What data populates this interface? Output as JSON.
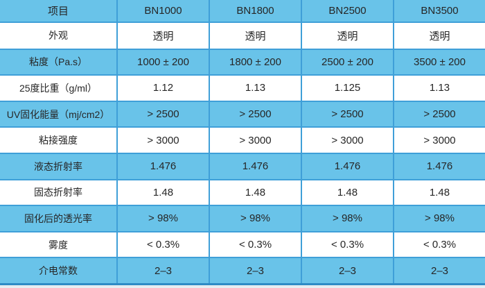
{
  "colors": {
    "cell_blue": "#69C3E9",
    "row_white": "#FFFFFF",
    "grid_line": "#3F9FD8",
    "bottom_border": "#2E8BC5",
    "bottom_edge": "#E6EDF1",
    "text": "#262626"
  },
  "chart_data": {
    "type": "table",
    "title": "",
    "columns": [
      "项目",
      "BN1000",
      "BN1800",
      "BN2500",
      "BN3500"
    ],
    "rows": [
      {
        "label": "外观",
        "values": [
          "透明",
          "透明",
          "透明",
          "透明"
        ]
      },
      {
        "label": "粘度（Pa.s）",
        "values": [
          "1000 ± 200",
          "1800 ± 200",
          "2500 ± 200",
          "3500 ± 200"
        ]
      },
      {
        "label": "25度比重（g/ml）",
        "values": [
          "1.12",
          "1.13",
          "1.125",
          "1.13"
        ]
      },
      {
        "label": "UV固化能量（mj/cm2）",
        "values": [
          "> 2500",
          "> 2500",
          "> 2500",
          "> 2500"
        ]
      },
      {
        "label": "粘接强度",
        "values": [
          "> 3000",
          "> 3000",
          "> 3000",
          "> 3000"
        ]
      },
      {
        "label": "液态折射率",
        "values": [
          "1.476",
          "1.476",
          "1.476",
          "1.476"
        ]
      },
      {
        "label": "固态折射率",
        "values": [
          "1.48",
          "1.48",
          "1.48",
          "1.48"
        ]
      },
      {
        "label": "固化后的透光率",
        "values": [
          "> 98%",
          "> 98%",
          "> 98%",
          "> 98%"
        ]
      },
      {
        "label": "雾度",
        "values": [
          "< 0.3%",
          "< 0.3%",
          "< 0.3%",
          "< 0.3%"
        ]
      },
      {
        "label": "介电常数",
        "values": [
          "2–3",
          "2–3",
          "2–3",
          "2–3"
        ]
      }
    ]
  }
}
